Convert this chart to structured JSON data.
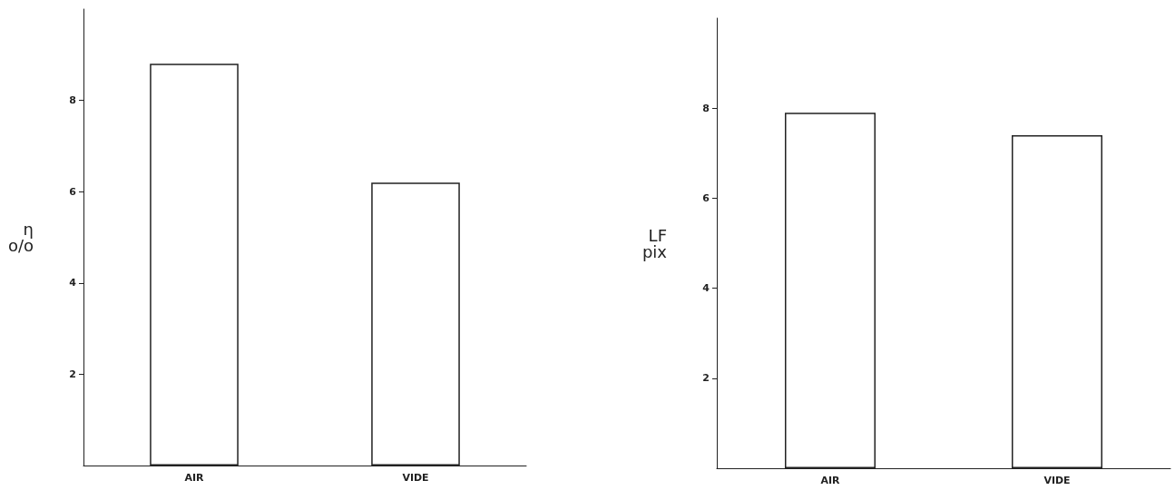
{
  "chart_data": [
    {
      "type": "bar",
      "ylabel": "η\no/o",
      "categories": [
        "AIR",
        "VIDE"
      ],
      "values": [
        8.8,
        6.2
      ],
      "colors": [
        "#ffffff",
        "#ffffff"
      ],
      "ylim": [
        0,
        10
      ],
      "yticks": [
        2,
        4,
        6,
        8
      ],
      "grid": false
    },
    {
      "type": "bar",
      "ylabel": "LF\npix",
      "categories": [
        "AIR",
        "VIDE"
      ],
      "values": [
        7.9,
        7.4
      ],
      "colors": [
        "#ffffff",
        "#ffffff"
      ],
      "ylim": [
        0,
        10
      ],
      "yticks": [
        2,
        4,
        6,
        8
      ],
      "grid": false
    }
  ]
}
